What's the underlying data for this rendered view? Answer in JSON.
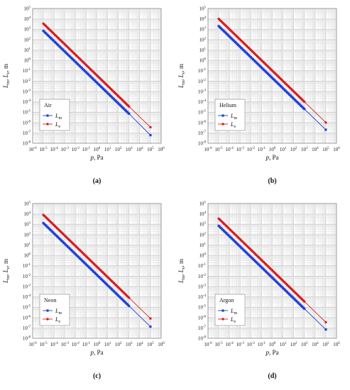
{
  "chart_data": [
    {
      "type": "scatter",
      "panel_label": "(a)",
      "legend_title": "Air",
      "legend_placement": "lower-left",
      "xlabel": "p, Pa",
      "ylabel": "Lm, Le, m",
      "x_scale": "log",
      "y_scale": "log",
      "xlim": [
        1e-06,
        1000000.0
      ],
      "ylim": [
        1e-08,
        100000.0
      ],
      "grid": true,
      "x_ticks": [
        "10-6",
        "10-5",
        "10-4",
        "10-3",
        "10-2",
        "10-1",
        "100",
        "101",
        "102",
        "103",
        "104",
        "105",
        "106"
      ],
      "y_ticks": [
        "10-8",
        "10-7",
        "10-6",
        "10-5",
        "10-4",
        "10-3",
        "10-2",
        "10-1",
        "100",
        "101",
        "102",
        "103",
        "104",
        "105"
      ],
      "series": [
        {
          "name": "Lm",
          "color": "#1f3fd6",
          "marker": "square",
          "x": [
            1e-05,
            0.0001,
            0.001,
            0.01,
            0.1,
            1,
            10,
            100,
            1000,
            100000
          ],
          "y": [
            700,
            70,
            7,
            0.7,
            0.07,
            0.007,
            0.0007,
            7e-05,
            7e-06,
            6e-08
          ]
        },
        {
          "name": "Le",
          "color": "#d81e1e",
          "marker": "circle",
          "x": [
            1e-05,
            0.0001,
            0.001,
            0.01,
            0.1,
            1,
            10,
            100,
            1000,
            100000
          ],
          "y": [
            3500,
            350,
            35,
            3.5,
            0.35,
            0.035,
            0.0035,
            0.00035,
            3.5e-05,
            3.5e-07
          ]
        }
      ]
    },
    {
      "type": "scatter",
      "panel_label": "(b)",
      "legend_title": "Helium",
      "legend_placement": "lower-left",
      "xlabel": "p, Pa",
      "ylabel": "Lm, Le, m",
      "x_scale": "log",
      "y_scale": "log",
      "xlim": [
        1e-06,
        1000000.0
      ],
      "ylim": [
        1e-08,
        100000.0
      ],
      "grid": true,
      "x_ticks": [
        "10-6",
        "10-5",
        "10-4",
        "10-3",
        "10-2",
        "10-1",
        "100",
        "101",
        "102",
        "103",
        "104",
        "105",
        "106"
      ],
      "y_ticks": [
        "10-8",
        "10-7",
        "10-6",
        "10-5",
        "10-4",
        "10-3",
        "10-2",
        "10-1",
        "100",
        "101",
        "102",
        "103",
        "104",
        "105"
      ],
      "series": [
        {
          "name": "Lm",
          "color": "#1f3fd6",
          "marker": "square",
          "x": [
            1e-05,
            0.0001,
            0.001,
            0.01,
            0.1,
            1,
            10,
            100,
            1000,
            100000
          ],
          "y": [
            2000,
            200,
            20,
            2,
            0.2,
            0.02,
            0.002,
            0.0002,
            2e-05,
            2e-07
          ]
        },
        {
          "name": "Le",
          "color": "#d81e1e",
          "marker": "circle",
          "x": [
            1e-05,
            0.0001,
            0.001,
            0.01,
            0.1,
            1,
            10,
            100,
            1000,
            100000
          ],
          "y": [
            10000,
            1000,
            100,
            10,
            1,
            0.1,
            0.01,
            0.001,
            0.0001,
            1e-06
          ]
        }
      ]
    },
    {
      "type": "scatter",
      "panel_label": "(c)",
      "legend_title": "Neon",
      "legend_placement": "lower-left",
      "xlabel": "p, Pa",
      "ylabel": "Lm, Le, m",
      "x_scale": "log",
      "y_scale": "log",
      "xlim": [
        1e-06,
        1000000.0
      ],
      "ylim": [
        1e-08,
        100000.0
      ],
      "grid": true,
      "x_ticks": [
        "10-6",
        "10-5",
        "10-4",
        "10-3",
        "10-2",
        "10-1",
        "100",
        "101",
        "102",
        "103",
        "104",
        "105",
        "106"
      ],
      "y_ticks": [
        "10-8",
        "10-7",
        "10-6",
        "10-5",
        "10-4",
        "10-3",
        "10-2",
        "10-1",
        "100",
        "101",
        "102",
        "103",
        "104",
        "105"
      ],
      "series": [
        {
          "name": "Lm",
          "color": "#1f3fd6",
          "marker": "square",
          "x": [
            1e-05,
            0.0001,
            0.001,
            0.01,
            0.1,
            1,
            10,
            100,
            1000,
            100000
          ],
          "y": [
            1300,
            130,
            13,
            1.3,
            0.13,
            0.013,
            0.0013,
            0.00013,
            1.3e-05,
            1.3e-07
          ]
        },
        {
          "name": "Le",
          "color": "#d81e1e",
          "marker": "circle",
          "x": [
            1e-05,
            0.0001,
            0.001,
            0.01,
            0.1,
            1,
            10,
            100,
            1000,
            100000
          ],
          "y": [
            8000,
            800,
            80,
            8,
            0.8,
            0.08,
            0.008,
            0.0008,
            8e-05,
            8e-07
          ]
        }
      ]
    },
    {
      "type": "scatter",
      "panel_label": "(d)",
      "legend_title": "Argon",
      "legend_placement": "lower-left",
      "xlabel": "p, Pa",
      "ylabel": "Lm, Le, m",
      "x_scale": "log",
      "y_scale": "log",
      "xlim": [
        1e-06,
        1000000.0
      ],
      "ylim": [
        1e-08,
        100000.0
      ],
      "grid": true,
      "x_ticks": [
        "10-6",
        "10-5",
        "10-4",
        "10-3",
        "10-2",
        "10-1",
        "100",
        "101",
        "102",
        "103",
        "104",
        "105",
        "106"
      ],
      "y_ticks": [
        "10-8",
        "10-7",
        "10-6",
        "10-5",
        "10-4",
        "10-3",
        "10-2",
        "10-1",
        "100",
        "101",
        "102",
        "103",
        "104",
        "105"
      ],
      "series": [
        {
          "name": "Lm",
          "color": "#1f3fd6",
          "marker": "square",
          "x": [
            1e-05,
            0.0001,
            0.001,
            0.01,
            0.1,
            1,
            10,
            100,
            1000,
            100000
          ],
          "y": [
            700,
            70,
            7,
            0.7,
            0.07,
            0.007,
            0.0007,
            7e-05,
            7e-06,
            7e-08
          ]
        },
        {
          "name": "Le",
          "color": "#d81e1e",
          "marker": "circle",
          "x": [
            1e-05,
            0.0001,
            0.001,
            0.01,
            0.1,
            1,
            10,
            100,
            1000,
            100000
          ],
          "y": [
            3500,
            350,
            35,
            3.5,
            0.35,
            0.035,
            0.0035,
            0.00035,
            3.5e-05,
            3.5e-07
          ]
        }
      ]
    }
  ]
}
